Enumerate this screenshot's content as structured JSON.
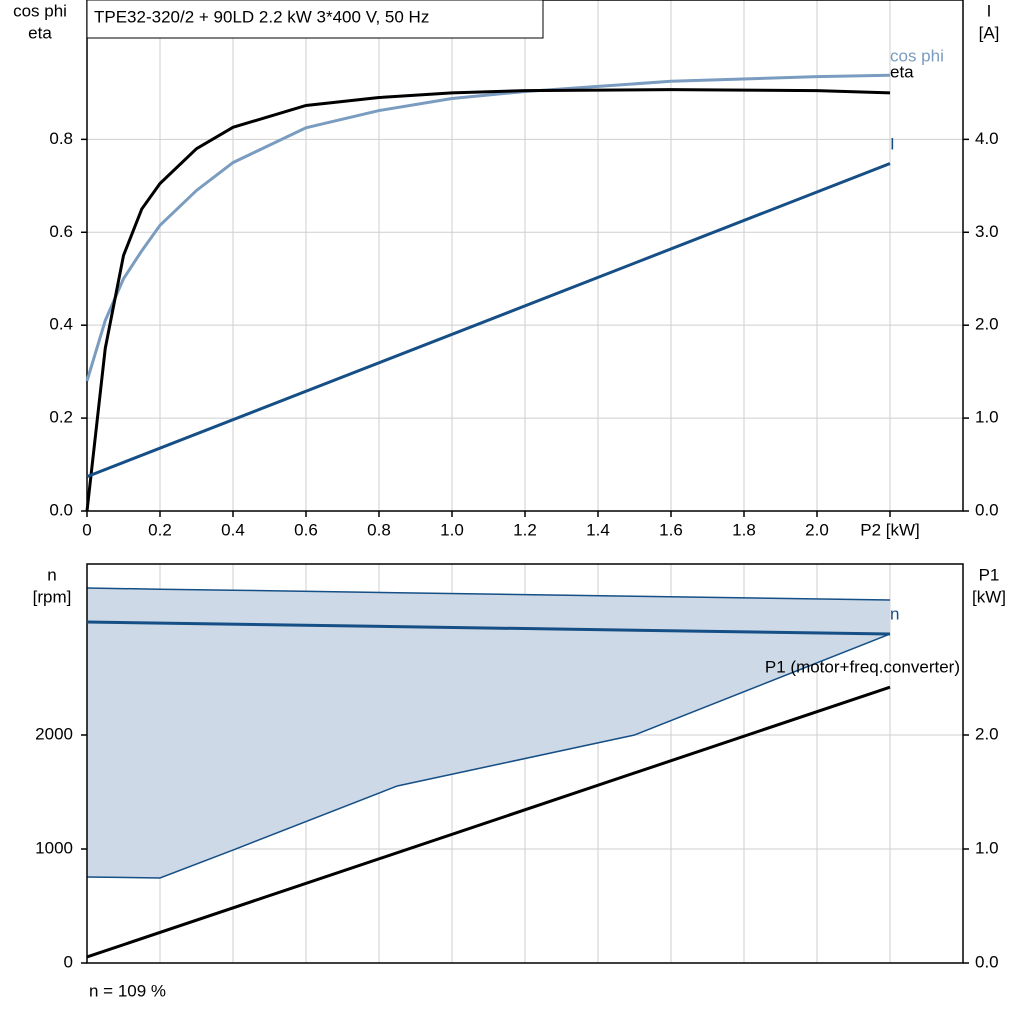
{
  "chart_data": [
    {
      "type": "line",
      "title": "TPE32-320/2 + 90LD   2.2 kW   3*400 V, 50 Hz",
      "ylabel": [
        "cos phi",
        "eta"
      ],
      "y2label": [
        "I",
        "[A]"
      ],
      "xlim": [
        0,
        2.4
      ],
      "xticks": [
        0,
        0.2,
        0.4,
        0.6,
        0.8,
        {
          "value": 1,
          "label": "1.0"
        },
        1.2,
        1.4,
        1.6,
        1.8,
        {
          "value": 2,
          "label": "2.0"
        },
        {
          "value": 2.2,
          "label": "P2 [kW]"
        }
      ],
      "ylim": [
        0,
        1.1
      ],
      "yticks": [
        {
          "value": 0,
          "label": "0.0"
        },
        0.2,
        0.4,
        0.6,
        0.8
      ],
      "y2lim": [
        0,
        5.5
      ],
      "y2ticks": [
        {
          "value": 0,
          "label": "0.0"
        },
        {
          "value": 1,
          "label": "1.0"
        },
        {
          "value": 2,
          "label": "2.0"
        },
        {
          "value": 3,
          "label": "3.0"
        },
        {
          "value": 4,
          "label": "4.0"
        }
      ],
      "grid": true,
      "series": [
        {
          "name": "cos phi",
          "color": "#7a9cc0",
          "x": [
            0,
            0.05,
            0.1,
            0.15,
            0.2,
            0.3,
            0.4,
            0.6,
            0.8,
            1.0,
            1.2,
            1.6,
            2.0,
            2.2
          ],
          "values": [
            0.28,
            0.41,
            0.5,
            0.56,
            0.615,
            0.69,
            0.75,
            0.825,
            0.862,
            0.888,
            0.903,
            0.925,
            0.935,
            0.938
          ]
        },
        {
          "name": "eta",
          "color": "#000000",
          "x": [
            0,
            0.05,
            0.1,
            0.15,
            0.2,
            0.3,
            0.4,
            0.6,
            0.8,
            1.0,
            1.2,
            1.6,
            2.0,
            2.2
          ],
          "values": [
            0,
            0.35,
            0.55,
            0.65,
            0.705,
            0.78,
            0.826,
            0.873,
            0.89,
            0.9,
            0.905,
            0.907,
            0.905,
            0.9
          ]
        },
        {
          "name": "I",
          "color": "#154f86",
          "axis": "y2",
          "x": [
            0,
            2.2
          ],
          "values": [
            0.37,
            3.74
          ]
        }
      ]
    },
    {
      "type": "line",
      "ylabel": [
        "n",
        "[rpm]"
      ],
      "y2label": [
        "P1",
        "[kW]"
      ],
      "footnote": "n = 109 %",
      "xlim": [
        0,
        2.4
      ],
      "ylim": [
        0,
        3500
      ],
      "yticks": [
        0,
        1000,
        2000
      ],
      "y2lim": [
        0,
        3.5
      ],
      "y2ticks": [
        {
          "value": 0,
          "label": "0.0"
        },
        {
          "value": 1,
          "label": "1.0"
        },
        {
          "value": 2,
          "label": "2.0"
        }
      ],
      "grid": true,
      "band": {
        "color": "#cdd9e6",
        "edge": "#154f86",
        "x": [
          0,
          0.2,
          0.4,
          0.85,
          1.5,
          2.2
        ],
        "lower": [
          754,
          746,
          991,
          1553,
          2000,
          2886
        ],
        "upper": [
          3289,
          3279,
          3270,
          3248,
          3217,
          3184
        ]
      },
      "series": [
        {
          "name": "n",
          "color": "#154f86",
          "x": [
            0,
            2.2
          ],
          "values": [
            2991,
            2886
          ]
        },
        {
          "name": "P1 (motor+freq.converter)",
          "color": "#000000",
          "axis": "y2",
          "x": [
            0,
            2.2
          ],
          "values": [
            0.053,
            2.42
          ]
        }
      ]
    }
  ]
}
